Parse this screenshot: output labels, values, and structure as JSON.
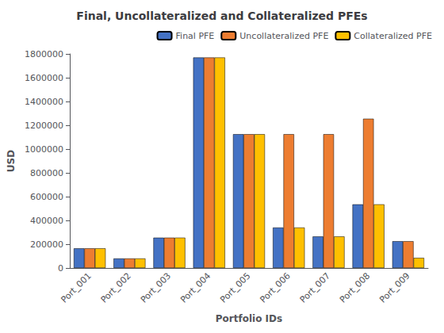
{
  "chart_data": {
    "type": "bar",
    "title": "Final, Uncollateralized and Collateralized PFEs",
    "xlabel": "Portfolio IDs",
    "ylabel": "USD",
    "categories": [
      "Port_001",
      "Port_002",
      "Port_003",
      "Port_004",
      "Port_005",
      "Port_006",
      "Port_007",
      "Port_008",
      "Port_009"
    ],
    "series": [
      {
        "name": "Final PFE",
        "color": "#4472C4",
        "values": [
          165000,
          80000,
          255000,
          1770000,
          1125000,
          340000,
          265000,
          535000,
          225000
        ]
      },
      {
        "name": "Uncollateralized PFE",
        "color": "#ED7D31",
        "values": [
          165000,
          80000,
          255000,
          1770000,
          1125000,
          1125000,
          1125000,
          1255000,
          225000
        ]
      },
      {
        "name": "Collateralized PFE",
        "color": "#FFC000",
        "values": [
          165000,
          80000,
          255000,
          1770000,
          1125000,
          340000,
          265000,
          535000,
          85000
        ]
      }
    ],
    "ylim": [
      0,
      1800000
    ],
    "yticks": [
      0,
      200000,
      400000,
      600000,
      800000,
      1000000,
      1200000,
      1400000,
      1600000,
      1800000
    ],
    "grid": false,
    "legend": "upper right"
  }
}
